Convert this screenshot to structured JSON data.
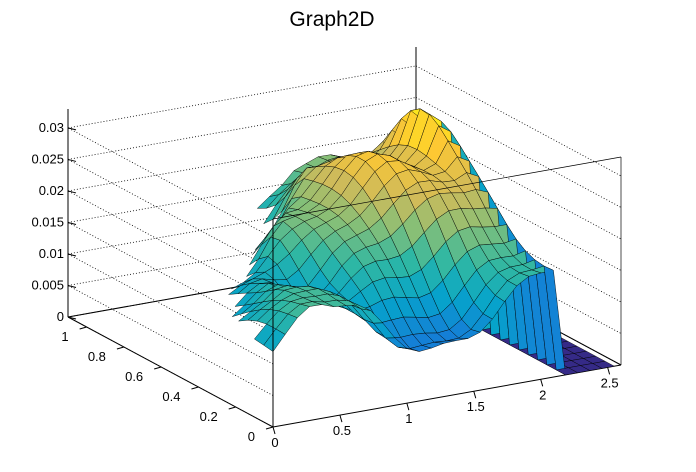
{
  "chart_data": {
    "type": "surface3d",
    "title": "Graph2D",
    "xlabel": "",
    "ylabel": "",
    "zlabel": "",
    "xlim": [
      0,
      2.6
    ],
    "ylim": [
      0,
      1.1
    ],
    "zlim": [
      0,
      0.033
    ],
    "x_ticks": [
      "0",
      "0.5",
      "1",
      "1.5",
      "2",
      "2.5"
    ],
    "x_tick_values": [
      0,
      0.5,
      1,
      1.5,
      2,
      2.5
    ],
    "y_ticks": [
      "0",
      "0.2",
      "0.4",
      "0.6",
      "0.8",
      "1"
    ],
    "y_tick_values": [
      0,
      0.2,
      0.4,
      0.6,
      0.8,
      1
    ],
    "z_ticks": [
      "0",
      "0.005",
      "0.01",
      "0.015",
      "0.02",
      "0.025",
      "0.03"
    ],
    "z_tick_values": [
      0,
      0.005,
      0.01,
      0.015,
      0.02,
      0.025,
      0.03
    ],
    "grid": true,
    "colormap": [
      "#352a87",
      "#0f5cdd",
      "#1481d6",
      "#06a4ca",
      "#2eb7a4",
      "#87bf77",
      "#d1bb59",
      "#fec832",
      "#f9fb0e"
    ],
    "grid_nx": 28,
    "grid_ny": 20,
    "support_xmin": [
      0.02,
      0.02,
      0.02,
      0.03,
      0.05,
      0.08,
      0.12,
      0.17,
      0.23,
      0.3,
      0.38,
      0.47,
      0.57,
      0.68,
      0.8,
      0.92,
      1.03,
      1.12,
      1.19,
      1.23,
      1.25
    ],
    "surface_description_points": [
      {
        "x": 0.0,
        "y": 1.0,
        "z": 0.019
      },
      {
        "x": 0.5,
        "y": 0.85,
        "z": 0.021
      },
      {
        "x": 1.0,
        "y": 0.6,
        "z": 0.022
      },
      {
        "x": 1.6,
        "y": 0.55,
        "z": 0.028
      },
      {
        "x": 2.05,
        "y": 0.65,
        "z": 0.03
      },
      {
        "x": 2.1,
        "y": 0.3,
        "z": 0.02
      },
      {
        "x": 1.4,
        "y": 0.1,
        "z": 0.008
      },
      {
        "x": 2.5,
        "y": 0.0,
        "z": 0.0
      }
    ]
  }
}
